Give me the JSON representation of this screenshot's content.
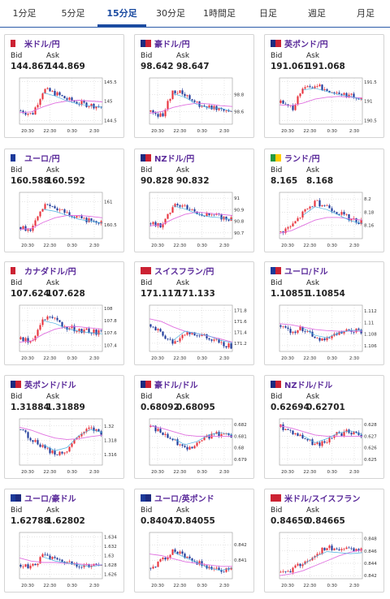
{
  "tabs": [
    "1分足",
    "5分足",
    "15分足",
    "30分足",
    "1時間足",
    "日足",
    "週足",
    "月足"
  ],
  "active_tab": 2,
  "labels": {
    "bid": "Bid",
    "ask": "Ask"
  },
  "cards": [
    {
      "pair": "米ドル/円",
      "bid": "144.867",
      "ask": "144.869",
      "flag": [
        "#cc2233",
        "#ffffff"
      ],
      "chart_data": {
        "type": "candlestick",
        "x_ticks": [
          "20:30",
          "22:30",
          "0:30",
          "2:30"
        ],
        "y_ticks": [
          "145.5",
          "145",
          "144.5"
        ],
        "y_range": [
          144.4,
          145.6
        ],
        "start": 144.75,
        "trend": [
          0,
          -0.1,
          0.55,
          0.45,
          0.3,
          0.2,
          0.15,
          0.1
        ],
        "ma": [
          144.7,
          144.72,
          144.85,
          144.95,
          145.0,
          145.02,
          145.0,
          144.98
        ]
      }
    },
    {
      "pair": "豪ドル/円",
      "bid": "98.642",
      "ask": "98.647",
      "flag": [
        "#1c2a80",
        "#cc2233"
      ],
      "chart_data": {
        "type": "candlestick",
        "x_ticks": [
          "20:30",
          "22:30",
          "0:30",
          "2:30"
        ],
        "y_ticks": [
          "98.8",
          "98.6"
        ],
        "y_range": [
          98.45,
          99.0
        ],
        "start": 98.6,
        "trend": [
          0,
          -0.05,
          0.25,
          0.2,
          0.1,
          0.05,
          0.05,
          0.0
        ],
        "ma": [
          98.58,
          98.6,
          98.65,
          98.68,
          98.7,
          98.69,
          98.67,
          98.66
        ]
      }
    },
    {
      "pair": "英ポンド/円",
      "bid": "191.061",
      "ask": "191.068",
      "flag": [
        "#1c2a80",
        "#cc2233"
      ],
      "chart_data": {
        "type": "candlestick",
        "x_ticks": [
          "20:30",
          "22:30",
          "0:30",
          "2:30"
        ],
        "y_ticks": [
          "191.5",
          "191",
          "190.5"
        ],
        "y_range": [
          190.4,
          191.6
        ],
        "start": 190.95,
        "trend": [
          0,
          -0.15,
          0.4,
          0.45,
          0.35,
          0.25,
          0.2,
          0.1
        ],
        "ma": [
          190.9,
          190.88,
          190.95,
          191.05,
          191.1,
          191.12,
          191.1,
          191.08
        ]
      }
    },
    {
      "pair": "ユーロ/円",
      "bid": "160.588",
      "ask": "160.592",
      "flag": [
        "#1c3a9a",
        "#ffffff"
      ],
      "chart_data": {
        "type": "candlestick",
        "x_ticks": [
          "20:30",
          "22:30",
          "0:30",
          "2:30"
        ],
        "y_ticks": [
          "161",
          "160.5"
        ],
        "y_range": [
          160.2,
          161.2
        ],
        "start": 160.45,
        "trend": [
          0,
          -0.05,
          0.45,
          0.4,
          0.3,
          0.2,
          0.15,
          0.1
        ],
        "ma": [
          160.4,
          160.42,
          160.55,
          160.65,
          160.7,
          160.7,
          160.68,
          160.65
        ]
      }
    },
    {
      "pair": "NZドル/円",
      "bid": "90.828",
      "ask": "90.832",
      "flag": [
        "#1c2a80",
        "#cc2233"
      ],
      "chart_data": {
        "type": "candlestick",
        "x_ticks": [
          "20:30",
          "22:30",
          "0:30",
          "2:30"
        ],
        "y_ticks": [
          "91",
          "90.9",
          "90.8",
          "90.7"
        ],
        "y_range": [
          90.65,
          91.05
        ],
        "start": 90.78,
        "trend": [
          0,
          -0.03,
          0.18,
          0.15,
          0.1,
          0.07,
          0.06,
          0.04
        ],
        "ma": [
          90.76,
          90.77,
          90.82,
          90.86,
          90.88,
          90.87,
          90.86,
          90.85
        ]
      }
    },
    {
      "pair": "ランド/円",
      "bid": "8.165",
      "ask": "8.168",
      "flag": [
        "#229944",
        "#ffcc00"
      ],
      "chart_data": {
        "type": "candlestick",
        "x_ticks": [
          "20:30",
          "22:30",
          "0:30",
          "2:30"
        ],
        "y_ticks": [
          "8.2",
          "8.18",
          "8.16"
        ],
        "y_range": [
          8.14,
          8.21
        ],
        "start": 8.15,
        "trend": [
          0,
          0.01,
          0.03,
          0.045,
          0.04,
          0.03,
          0.02,
          0.015
        ],
        "ma": [
          8.148,
          8.152,
          8.16,
          8.168,
          8.172,
          8.172,
          8.17,
          8.168
        ]
      }
    },
    {
      "pair": "カナダドル/円",
      "bid": "107.624",
      "ask": "107.628",
      "flag": [
        "#cc2233",
        "#ffffff"
      ],
      "chart_data": {
        "type": "candlestick",
        "x_ticks": [
          "20:30",
          "22:30",
          "0:30",
          "2:30"
        ],
        "y_ticks": [
          "108",
          "107.8",
          "107.6",
          "107.4"
        ],
        "y_range": [
          107.3,
          108.05
        ],
        "start": 107.5,
        "trend": [
          0,
          -0.05,
          0.35,
          0.3,
          0.2,
          0.15,
          0.12,
          0.1
        ],
        "ma": [
          107.45,
          107.47,
          107.58,
          107.66,
          107.7,
          107.7,
          107.68,
          107.66
        ]
      }
    },
    {
      "pair": "スイスフラン/円",
      "bid": "171.117",
      "ask": "171.133",
      "flag": [
        "#cc2233",
        "#cc2233"
      ],
      "chart_data": {
        "type": "candlestick",
        "x_ticks": [
          "20:30",
          "22:30",
          "0:30",
          "2:30"
        ],
        "y_ticks": [
          "171.8",
          "171.6",
          "171.4",
          "171.2"
        ],
        "y_range": [
          171.05,
          171.9
        ],
        "start": 171.55,
        "trend": [
          0,
          -0.2,
          -0.35,
          -0.15,
          -0.2,
          -0.25,
          -0.35,
          -0.4
        ],
        "ma": [
          171.65,
          171.6,
          171.5,
          171.42,
          171.38,
          171.33,
          171.28,
          171.22
        ]
      }
    },
    {
      "pair": "ユーロ/ドル",
      "bid": "1.10851",
      "ask": "1.10854",
      "flag": [
        "#1c3a9a",
        "#cc2233"
      ],
      "chart_data": {
        "type": "candlestick",
        "x_ticks": [
          "20:30",
          "22:30",
          "0:30",
          "2:30"
        ],
        "y_ticks": [
          "1.112",
          "1.11",
          "1.108",
          "1.106"
        ],
        "y_range": [
          1.105,
          1.113
        ],
        "start": 1.1095,
        "trend": [
          0,
          -0.001,
          -0.0005,
          -0.002,
          -0.0025,
          -0.0015,
          -0.001,
          -0.001
        ],
        "ma": [
          1.1098,
          1.1096,
          1.1092,
          1.1088,
          1.1086,
          1.1085,
          1.1085,
          1.1085
        ]
      }
    },
    {
      "pair": "英ポンド/ドル",
      "bid": "1.31884",
      "ask": "1.31889",
      "flag": [
        "#1c2a80",
        "#cc2233"
      ],
      "chart_data": {
        "type": "candlestick",
        "x_ticks": [
          "20:30",
          "22:30",
          "0:30",
          "2:30"
        ],
        "y_ticks": [
          "1.32",
          "1.318",
          "1.316"
        ],
        "y_range": [
          1.3145,
          1.321
        ],
        "start": 1.3195,
        "trend": [
          0,
          -0.0015,
          -0.0025,
          -0.0035,
          -0.003,
          -0.001,
          0.0,
          -0.0005
        ],
        "ma": [
          1.3198,
          1.3194,
          1.3188,
          1.3183,
          1.3181,
          1.3182,
          1.3185,
          1.3187
        ]
      }
    },
    {
      "pair": "豪ドル/ドル",
      "bid": "0.68092",
      "ask": "0.68095",
      "flag": [
        "#1c2a80",
        "#cc2233"
      ],
      "chart_data": {
        "type": "candlestick",
        "x_ticks": [
          "20:30",
          "22:30",
          "0:30",
          "2:30"
        ],
        "y_ticks": [
          "0.682",
          "0.681",
          "0.68",
          "0.679"
        ],
        "y_range": [
          0.6785,
          0.6825
        ],
        "start": 0.6818,
        "trend": [
          0,
          -0.0005,
          -0.0012,
          -0.0018,
          -0.0015,
          -0.0008,
          -0.0006,
          -0.0008
        ],
        "ma": [
          0.6819,
          0.6817,
          0.6814,
          0.6811,
          0.681,
          0.681,
          0.681,
          0.681
        ]
      }
    },
    {
      "pair": "NZドル/ドル",
      "bid": "0.62694",
      "ask": "0.62701",
      "flag": [
        "#1c2a80",
        "#cc2233"
      ],
      "chart_data": {
        "type": "candlestick",
        "x_ticks": [
          "20:30",
          "22:30",
          "0:30",
          "2:30"
        ],
        "y_ticks": [
          "0.628",
          "0.627",
          "0.626",
          "0.625"
        ],
        "y_range": [
          0.6245,
          0.6285
        ],
        "start": 0.6278,
        "trend": [
          0,
          -0.0004,
          -0.0009,
          -0.0016,
          -0.0012,
          -0.0006,
          -0.0004,
          -0.0008
        ],
        "ma": [
          0.6279,
          0.6277,
          0.6274,
          0.6271,
          0.627,
          0.627,
          0.627,
          0.627
        ]
      }
    },
    {
      "pair": "ユーロ/豪ドル",
      "bid": "1.62788",
      "ask": "1.62802",
      "flag": [
        "#1c3a9a",
        "#1c2a80"
      ],
      "chart_data": {
        "type": "candlestick",
        "x_ticks": [
          "20:30",
          "22:30",
          "0:30",
          "2:30"
        ],
        "y_ticks": [
          "1.634",
          "1.632",
          "1.63",
          "1.628",
          "1.626"
        ],
        "y_range": [
          1.625,
          1.635
        ],
        "start": 1.628,
        "trend": [
          0,
          -0.0005,
          0.002,
          0.001,
          0.0005,
          0.0,
          -0.0005,
          0.0
        ],
        "ma": [
          1.6295,
          1.6288,
          1.6285,
          1.6285,
          1.6283,
          1.6282,
          1.628,
          1.628
        ]
      }
    },
    {
      "pair": "ユーロ/英ポンド",
      "bid": "0.84047",
      "ask": "0.84055",
      "flag": [
        "#1c3a9a",
        "#1c2a80"
      ],
      "chart_data": {
        "type": "candlestick",
        "x_ticks": [
          "20:30",
          "22:30",
          "0:30",
          "2:30"
        ],
        "y_ticks": [
          "0.842",
          "0.841"
        ],
        "y_range": [
          0.8398,
          0.8428
        ],
        "start": 0.8405,
        "trend": [
          0,
          0.0005,
          0.0012,
          0.0008,
          0.0004,
          0.0,
          -0.0002,
          0.0
        ],
        "ma": [
          0.8414,
          0.8413,
          0.8411,
          0.8409,
          0.8408,
          0.8407,
          0.8406,
          0.8406
        ]
      }
    },
    {
      "pair": "米ドル/スイスフラン",
      "bid": "0.84650",
      "ask": "0.84665",
      "flag": [
        "#cc2233",
        "#cc2233"
      ],
      "chart_data": {
        "type": "candlestick",
        "x_ticks": [
          "20:30",
          "22:30",
          "0:30",
          "2:30"
        ],
        "y_ticks": [
          "0.848",
          "0.846",
          "0.844",
          "0.842"
        ],
        "y_range": [
          0.8415,
          0.849
        ],
        "start": 0.8425,
        "trend": [
          0,
          0.0005,
          0.0015,
          0.003,
          0.004,
          0.0038,
          0.0036,
          0.0038
        ],
        "ma": [
          0.842,
          0.8423,
          0.8428,
          0.8436,
          0.8444,
          0.8452,
          0.8458,
          0.8462
        ]
      }
    }
  ]
}
